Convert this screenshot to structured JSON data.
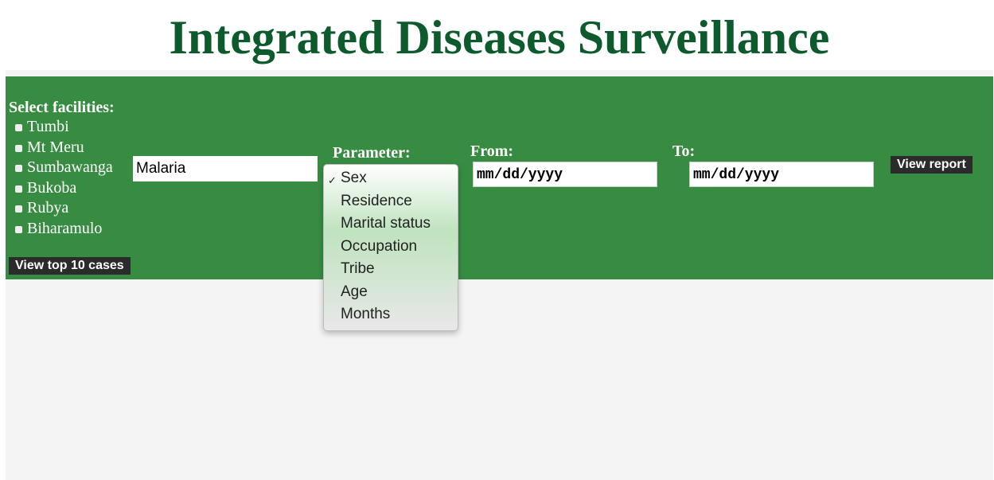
{
  "header": {
    "title": "Integrated Diseases Surveillance"
  },
  "facilities": {
    "label": "Select facilities:",
    "items": [
      "Tumbi",
      "Mt Meru",
      "Sumbawanga",
      "Bukoba",
      "Rubya",
      "Biharamulo"
    ],
    "button": "View top 10 cases"
  },
  "disease": {
    "value": "Malaria"
  },
  "parameter": {
    "label": "Parameter:",
    "options": [
      "Sex",
      "Residence",
      "Marital status",
      "Occupation",
      "Tribe",
      "Age",
      "Months"
    ],
    "selected": "✓"
  },
  "from": {
    "label": "From:",
    "placeholder": "mm/dd/yyyy"
  },
  "to": {
    "label": "To:",
    "placeholder": "mm/dd/yyyy"
  },
  "report": {
    "button": "View report"
  }
}
